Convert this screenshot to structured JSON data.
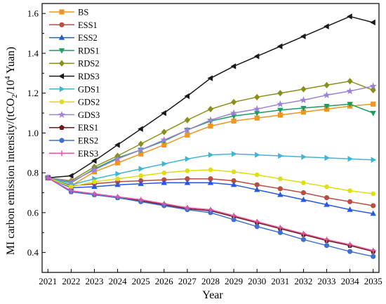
{
  "chart_data": {
    "type": "line",
    "xlabel": "Year",
    "ylabel": "MI carbon emission intensity/(tCO",
    "ylabel_sub": "2",
    "ylabel_mid": "/10",
    "ylabel_sup": "4",
    "ylabel_end": " Yuan)",
    "xlim": [
      2020.75,
      2035.25
    ],
    "ylim": [
      0.3,
      1.65
    ],
    "x": [
      2021,
      2022,
      2023,
      2024,
      2025,
      2026,
      2027,
      2028,
      2029,
      2030,
      2031,
      2032,
      2033,
      2034,
      2035
    ],
    "x_tick_labels": [
      "2021",
      "2022",
      "2023",
      "2024",
      "2025",
      "2026",
      "2027",
      "2028",
      "2029",
      "2030",
      "2031",
      "2032",
      "2033",
      "2034",
      "2035"
    ],
    "y_ticks": [
      0.4,
      0.6,
      0.8,
      1.0,
      1.2,
      1.4,
      1.6
    ],
    "y_tick_labels": [
      "0.4",
      "0.6",
      "0.8",
      "1.0",
      "1.2",
      "1.4",
      "1.6"
    ],
    "grid": false,
    "legend_position": "top-left",
    "series": [
      {
        "name": "BS",
        "color": "#f0961e",
        "marker": "square",
        "values": [
          0.775,
          0.735,
          0.805,
          0.85,
          0.895,
          0.94,
          0.99,
          1.035,
          1.06,
          1.075,
          1.09,
          1.105,
          1.12,
          1.135,
          1.145
        ]
      },
      {
        "name": "ESS1",
        "color": "#b84d42",
        "marker": "circle",
        "values": [
          0.775,
          0.735,
          0.745,
          0.755,
          0.76,
          0.765,
          0.77,
          0.77,
          0.76,
          0.74,
          0.72,
          0.7,
          0.675,
          0.655,
          0.635
        ]
      },
      {
        "name": "ESS2",
        "color": "#2659e0",
        "marker": "triangle-up",
        "values": [
          0.775,
          0.725,
          0.73,
          0.74,
          0.745,
          0.75,
          0.75,
          0.75,
          0.74,
          0.715,
          0.69,
          0.665,
          0.64,
          0.615,
          0.595
        ]
      },
      {
        "name": "RDS1",
        "color": "#1a9e5f",
        "marker": "triangle-down",
        "values": [
          0.775,
          0.75,
          0.82,
          0.875,
          0.915,
          0.96,
          1.015,
          1.06,
          1.085,
          1.1,
          1.115,
          1.125,
          1.135,
          1.145,
          1.1
        ]
      },
      {
        "name": "RDS2",
        "color": "#8a8f1a",
        "marker": "diamond",
        "values": [
          0.775,
          0.76,
          0.83,
          0.885,
          0.945,
          1.005,
          1.065,
          1.12,
          1.155,
          1.18,
          1.2,
          1.22,
          1.24,
          1.26,
          1.215
        ]
      },
      {
        "name": "RDS3",
        "color": "#1a1a1a",
        "marker": "triangle-left",
        "values": [
          0.775,
          0.785,
          0.86,
          0.94,
          1.02,
          1.1,
          1.185,
          1.275,
          1.335,
          1.385,
          1.435,
          1.485,
          1.535,
          1.585,
          1.555
        ]
      },
      {
        "name": "GDS1",
        "color": "#3fb5d6",
        "marker": "triangle-right",
        "values": [
          0.775,
          0.74,
          0.77,
          0.795,
          0.82,
          0.845,
          0.87,
          0.89,
          0.895,
          0.89,
          0.885,
          0.88,
          0.875,
          0.87,
          0.865
        ]
      },
      {
        "name": "GDS2",
        "color": "#dede10",
        "marker": "hexagon",
        "values": [
          0.775,
          0.73,
          0.755,
          0.77,
          0.785,
          0.8,
          0.81,
          0.815,
          0.805,
          0.79,
          0.77,
          0.75,
          0.73,
          0.71,
          0.695
        ]
      },
      {
        "name": "GDS3",
        "color": "#9c83d8",
        "marker": "star",
        "values": [
          0.775,
          0.755,
          0.815,
          0.87,
          0.915,
          0.965,
          1.015,
          1.065,
          1.1,
          1.12,
          1.145,
          1.165,
          1.19,
          1.21,
          1.235
        ]
      },
      {
        "name": "ERS1",
        "color": "#6b1a1a",
        "marker": "pentagon",
        "values": [
          0.775,
          0.705,
          0.69,
          0.675,
          0.66,
          0.64,
          0.62,
          0.61,
          0.58,
          0.55,
          0.52,
          0.49,
          0.46,
          0.435,
          0.405
        ]
      },
      {
        "name": "ERS2",
        "color": "#3f6fd1",
        "marker": "circle",
        "values": [
          0.775,
          0.705,
          0.69,
          0.675,
          0.655,
          0.635,
          0.615,
          0.6,
          0.565,
          0.53,
          0.5,
          0.465,
          0.435,
          0.405,
          0.38
        ]
      },
      {
        "name": "ERS3",
        "color": "#e65aa8",
        "marker": "cross",
        "values": [
          0.775,
          0.71,
          0.695,
          0.68,
          0.665,
          0.645,
          0.625,
          0.615,
          0.585,
          0.555,
          0.525,
          0.495,
          0.465,
          0.44,
          0.41
        ]
      }
    ]
  }
}
